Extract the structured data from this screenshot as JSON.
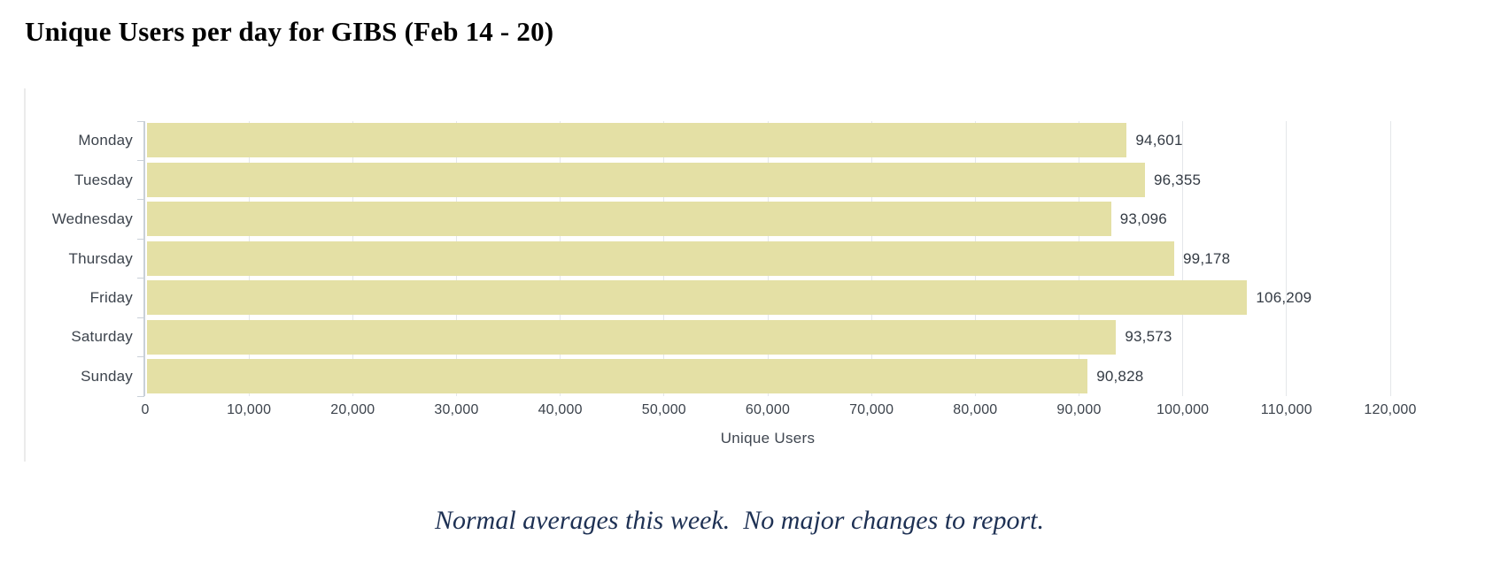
{
  "title": "Unique Users per day for GIBS (Feb 14 - 20)",
  "note": "Normal averages this week.  No major changes to report.",
  "chart_data": {
    "type": "bar",
    "orientation": "horizontal",
    "title": "Unique Users per day for GIBS (Feb 14 - 20)",
    "categories": [
      "Monday",
      "Tuesday",
      "Wednesday",
      "Thursday",
      "Friday",
      "Saturday",
      "Sunday"
    ],
    "values": [
      94601,
      96355,
      93096,
      99178,
      106209,
      93573,
      90828
    ],
    "value_labels": [
      "94,601",
      "96,355",
      "93,096",
      "99,178",
      "106,209",
      "93,573",
      "90,828"
    ],
    "xlabel": "Unique Users",
    "ylabel": "",
    "xlim": [
      0,
      120000
    ],
    "x_ticks": [
      {
        "value": 0,
        "label": "0"
      },
      {
        "value": 10000,
        "label": "10,000"
      },
      {
        "value": 20000,
        "label": "20,000"
      },
      {
        "value": 30000,
        "label": "30,000"
      },
      {
        "value": 40000,
        "label": "40,000"
      },
      {
        "value": 50000,
        "label": "50,000"
      },
      {
        "value": 60000,
        "label": "60,000"
      },
      {
        "value": 70000,
        "label": "70,000"
      },
      {
        "value": 80000,
        "label": "80,000"
      },
      {
        "value": 90000,
        "label": "90,000"
      },
      {
        "value": 100000,
        "label": "100,000"
      },
      {
        "value": 110000,
        "label": "110,000"
      },
      {
        "value": 120000,
        "label": "120,000"
      }
    ],
    "grid": true,
    "legend": "none",
    "colors": {
      "bar": "#e4e0a5",
      "grid": "#e4e7ea",
      "axis": "#c9d0d8",
      "category_label": "#3c434c",
      "value_label": "#343b44",
      "tick_label": "#3c434c",
      "axis_title": "#3f4650",
      "chart_title": "#000000",
      "note": "#1e3154"
    }
  }
}
